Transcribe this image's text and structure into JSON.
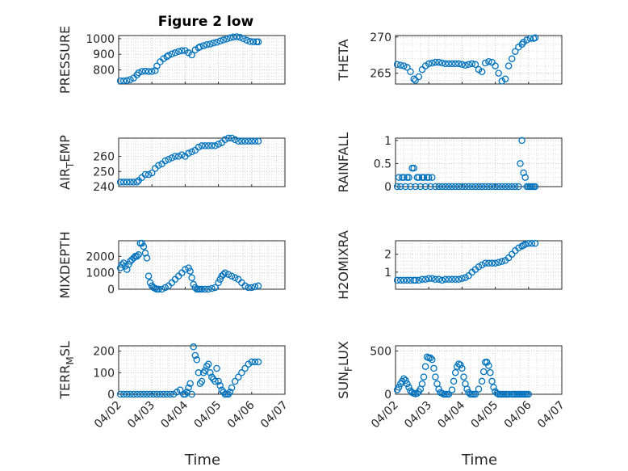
{
  "figure": {
    "title": "Figure 2 low",
    "xlabel_time": "Time"
  },
  "colors": {
    "marker": "#0072bd",
    "axis": "#262626",
    "grid": "#c8c8c8"
  },
  "x_tick_labels": [
    "04/02",
    "04/03",
    "04/04",
    "04/05",
    "04/06",
    "04/07"
  ],
  "chart_data": [
    {
      "type": "scatter",
      "id": "pressure",
      "title": "Figure 2 low",
      "ylabel": "PRESSURE",
      "ylabel_sub": "",
      "ylim": [
        710,
        1020
      ],
      "yticks": [
        800,
        900,
        1000
      ],
      "xlim": [
        0,
        5
      ],
      "marker": "circle",
      "grid": true,
      "x": [
        0.05,
        0.15,
        0.25,
        0.35,
        0.45,
        0.55,
        0.6,
        0.7,
        0.8,
        0.9,
        1.0,
        1.1,
        1.15,
        1.25,
        1.35,
        1.45,
        1.5,
        1.6,
        1.7,
        1.8,
        1.9,
        2.0,
        2.1,
        2.2,
        2.3,
        2.4,
        2.45,
        2.55,
        2.65,
        2.75,
        2.85,
        2.95,
        3.05,
        3.15,
        3.25,
        3.35,
        3.45,
        3.55,
        3.65,
        3.75,
        3.85,
        3.95,
        4.05,
        4.15,
        4.2
      ],
      "y": [
        730,
        730,
        732,
        738,
        748,
        768,
        782,
        790,
        792,
        790,
        790,
        796,
        825,
        852,
        872,
        885,
        893,
        902,
        910,
        918,
        923,
        924,
        910,
        896,
        928,
        942,
        948,
        955,
        962,
        965,
        972,
        977,
        985,
        992,
        998,
        1005,
        1010,
        1012,
        1008,
        1000,
        990,
        982,
        980,
        980,
        980
      ]
    },
    {
      "type": "scatter",
      "id": "theta",
      "ylabel": "THETA",
      "ylabel_sub": "",
      "ylim": [
        263.5,
        270.2
      ],
      "yticks": [
        265,
        270
      ],
      "xlim": [
        0,
        5
      ],
      "marker": "circle",
      "grid": true,
      "x": [
        0.05,
        0.15,
        0.25,
        0.35,
        0.45,
        0.55,
        0.6,
        0.7,
        0.8,
        0.9,
        1.0,
        1.1,
        1.2,
        1.3,
        1.4,
        1.5,
        1.6,
        1.7,
        1.8,
        1.9,
        2.0,
        2.1,
        2.2,
        2.3,
        2.4,
        2.5,
        2.6,
        2.7,
        2.8,
        2.9,
        3.0,
        3.1,
        3.2,
        3.3,
        3.4,
        3.5,
        3.6,
        3.7,
        3.8,
        3.85,
        3.95,
        4.05,
        4.15,
        4.2
      ],
      "y": [
        266.2,
        266.1,
        266.0,
        265.8,
        265.2,
        264.2,
        264.0,
        264.5,
        265.5,
        266.0,
        266.3,
        266.4,
        266.5,
        266.5,
        266.4,
        266.3,
        266.3,
        266.3,
        266.3,
        266.3,
        266.2,
        266.1,
        266.2,
        266.3,
        266.2,
        265.5,
        265.2,
        266.4,
        266.6,
        266.5,
        266.0,
        265.0,
        263.9,
        264.2,
        266.0,
        267.0,
        268.0,
        268.6,
        269.0,
        269.3,
        269.6,
        269.8,
        269.8,
        269.9
      ]
    },
    {
      "type": "scatter",
      "id": "air_temp",
      "ylabel": "AIR",
      "ylabel_sub": "T",
      "ylabel_tail": "EMP",
      "ylim": [
        240,
        272
      ],
      "yticks": [
        240,
        250,
        260
      ],
      "xlim": [
        0,
        5
      ],
      "marker": "circle",
      "grid": true,
      "x": [
        0.05,
        0.15,
        0.25,
        0.35,
        0.45,
        0.55,
        0.6,
        0.7,
        0.8,
        0.9,
        1.0,
        1.1,
        1.2,
        1.3,
        1.4,
        1.5,
        1.6,
        1.7,
        1.8,
        1.9,
        2.0,
        2.1,
        2.2,
        2.3,
        2.4,
        2.5,
        2.6,
        2.7,
        2.8,
        2.9,
        3.0,
        3.1,
        3.2,
        3.3,
        3.4,
        3.5,
        3.6,
        3.7,
        3.8,
        3.9,
        4.0,
        4.1,
        4.2
      ],
      "y": [
        243,
        243,
        243,
        243,
        243,
        243,
        244,
        246,
        248,
        248,
        249,
        252,
        254,
        255,
        257,
        258,
        259,
        260,
        260,
        261,
        260,
        262,
        263,
        264,
        266,
        267,
        267,
        267,
        267,
        267,
        268,
        269,
        271,
        272,
        272,
        271,
        270,
        270,
        270,
        270,
        270,
        270,
        270
      ]
    },
    {
      "type": "scatter",
      "id": "rainfall",
      "ylabel": "RAINFALL",
      "ylabel_sub": "",
      "ylim": [
        0,
        1.05
      ],
      "yticks": [
        0,
        0.5,
        1
      ],
      "xlim": [
        0,
        5
      ],
      "marker": "circle",
      "grid": true,
      "x": [
        0.05,
        0.1,
        0.15,
        0.2,
        0.25,
        0.3,
        0.35,
        0.4,
        0.45,
        0.5,
        0.55,
        0.6,
        0.65,
        0.7,
        0.75,
        0.8,
        0.85,
        0.9,
        0.95,
        1.0,
        1.05,
        1.1,
        1.2,
        1.3,
        1.4,
        1.5,
        1.6,
        1.7,
        1.8,
        1.9,
        2.0,
        2.1,
        2.2,
        2.3,
        2.4,
        2.5,
        2.6,
        2.7,
        2.8,
        2.9,
        3.0,
        3.1,
        3.2,
        3.3,
        3.4,
        3.5,
        3.6,
        3.7,
        3.75,
        3.8,
        3.85,
        3.9,
        3.95,
        4.0,
        4.05,
        4.1,
        4.15,
        4.2
      ],
      "y": [
        0,
        0.2,
        0,
        0.2,
        0.2,
        0,
        0.2,
        0.2,
        0,
        0.4,
        0.4,
        0,
        0.2,
        0.2,
        0,
        0.2,
        0.2,
        0,
        0.2,
        0.2,
        0,
        0.2,
        0,
        0,
        0,
        0,
        0,
        0,
        0,
        0,
        0,
        0,
        0,
        0,
        0,
        0,
        0,
        0,
        0,
        0,
        0,
        0,
        0,
        0,
        0,
        0,
        0,
        0,
        0.5,
        1.0,
        0.3,
        0.2,
        0,
        0,
        0,
        0,
        0,
        0
      ]
    },
    {
      "type": "scatter",
      "id": "mixdepth",
      "ylabel": "MIXDEPTH",
      "ylabel_sub": "",
      "ylim": [
        0,
        2950
      ],
      "yticks": [
        0,
        1000,
        2000
      ],
      "xlim": [
        0,
        5
      ],
      "marker": "circle",
      "grid": true,
      "x": [
        0.05,
        0.1,
        0.15,
        0.2,
        0.25,
        0.3,
        0.35,
        0.4,
        0.45,
        0.5,
        0.55,
        0.6,
        0.65,
        0.7,
        0.75,
        0.8,
        0.85,
        0.9,
        0.95,
        1.0,
        1.05,
        1.1,
        1.15,
        1.2,
        1.3,
        1.4,
        1.5,
        1.6,
        1.7,
        1.8,
        1.9,
        2.0,
        2.1,
        2.15,
        2.2,
        2.25,
        2.3,
        2.35,
        2.4,
        2.45,
        2.5,
        2.6,
        2.7,
        2.8,
        2.9,
        3.0,
        3.05,
        3.1,
        3.15,
        3.2,
        3.3,
        3.4,
        3.5,
        3.6,
        3.7,
        3.8,
        3.9,
        4.0,
        4.1,
        4.2
      ],
      "y": [
        1300,
        1500,
        1600,
        1400,
        1200,
        1500,
        1700,
        1800,
        1900,
        2000,
        2000,
        2100,
        2800,
        2800,
        2600,
        2200,
        1900,
        800,
        400,
        200,
        100,
        50,
        0,
        0,
        0,
        100,
        200,
        400,
        600,
        800,
        1000,
        1200,
        1300,
        1100,
        700,
        300,
        100,
        0,
        0,
        0,
        0,
        0,
        0,
        50,
        100,
        400,
        600,
        800,
        900,
        1000,
        900,
        800,
        700,
        600,
        400,
        200,
        100,
        100,
        150,
        200
      ]
    },
    {
      "type": "scatter",
      "id": "h2omixra",
      "ylabel": "H2OMIXRA",
      "ylabel_sub": "",
      "ylim": [
        0.05,
        2.75
      ],
      "yticks": [
        1,
        2
      ],
      "xlim": [
        0,
        5
      ],
      "marker": "circle",
      "grid": true,
      "x": [
        0.05,
        0.15,
        0.25,
        0.35,
        0.45,
        0.55,
        0.6,
        0.7,
        0.8,
        0.9,
        1.0,
        1.1,
        1.2,
        1.3,
        1.4,
        1.5,
        1.6,
        1.7,
        1.8,
        1.9,
        2.0,
        2.1,
        2.2,
        2.3,
        2.4,
        2.5,
        2.6,
        2.7,
        2.8,
        2.9,
        3.0,
        3.1,
        3.2,
        3.3,
        3.4,
        3.5,
        3.6,
        3.7,
        3.8,
        3.85,
        3.9,
        4.0,
        4.1,
        4.2
      ],
      "y": [
        0.55,
        0.55,
        0.55,
        0.55,
        0.55,
        0.55,
        0.55,
        0.55,
        0.6,
        0.6,
        0.65,
        0.65,
        0.6,
        0.6,
        0.55,
        0.6,
        0.6,
        0.6,
        0.6,
        0.6,
        0.65,
        0.7,
        0.8,
        1.0,
        1.15,
        1.3,
        1.4,
        1.5,
        1.5,
        1.5,
        1.5,
        1.55,
        1.6,
        1.65,
        1.8,
        2.0,
        2.2,
        2.35,
        2.45,
        2.5,
        2.55,
        2.6,
        2.6,
        2.6
      ]
    },
    {
      "type": "scatter",
      "id": "terr_msl",
      "ylabel": "TERR",
      "ylabel_sub": "M",
      "ylabel_tail": "SL",
      "ylim": [
        0,
        225
      ],
      "yticks": [
        0,
        100,
        200
      ],
      "xlim": [
        0,
        5
      ],
      "marker": "circle",
      "grid": true,
      "x": [
        0.05,
        0.15,
        0.25,
        0.35,
        0.45,
        0.55,
        0.65,
        0.75,
        0.85,
        0.95,
        1.05,
        1.15,
        1.25,
        1.35,
        1.45,
        1.55,
        1.65,
        1.75,
        1.85,
        1.95,
        2.0,
        2.05,
        2.1,
        2.15,
        2.2,
        2.25,
        2.3,
        2.35,
        2.4,
        2.45,
        2.5,
        2.55,
        2.6,
        2.65,
        2.7,
        2.75,
        2.8,
        2.85,
        2.9,
        2.95,
        3.0,
        3.05,
        3.1,
        3.15,
        3.2,
        3.25,
        3.3,
        3.35,
        3.4,
        3.5,
        3.6,
        3.7,
        3.8,
        3.9,
        4.0,
        4.1,
        4.2
      ],
      "y": [
        0,
        0,
        0,
        0,
        0,
        0,
        0,
        0,
        0,
        0,
        0,
        0,
        0,
        0,
        0,
        0,
        0,
        10,
        20,
        0,
        0,
        10,
        30,
        50,
        0,
        220,
        180,
        160,
        100,
        50,
        60,
        100,
        110,
        130,
        140,
        100,
        80,
        70,
        60,
        120,
        60,
        40,
        20,
        10,
        0,
        0,
        0,
        10,
        30,
        60,
        80,
        100,
        120,
        140,
        150,
        150,
        150
      ]
    },
    {
      "type": "scatter",
      "id": "sun_flux",
      "ylabel": "SUN",
      "ylabel_sub": "F",
      "ylabel_tail": "LUX",
      "ylim": [
        0,
        560
      ],
      "yticks": [
        0,
        500
      ],
      "xlim": [
        0,
        5
      ],
      "marker": "circle",
      "grid": true,
      "x": [
        0.05,
        0.1,
        0.15,
        0.2,
        0.25,
        0.3,
        0.35,
        0.4,
        0.45,
        0.5,
        0.55,
        0.6,
        0.65,
        0.7,
        0.75,
        0.8,
        0.85,
        0.9,
        0.95,
        1.0,
        1.05,
        1.1,
        1.15,
        1.2,
        1.25,
        1.3,
        1.35,
        1.4,
        1.45,
        1.5,
        1.55,
        1.6,
        1.7,
        1.75,
        1.8,
        1.85,
        1.9,
        1.95,
        2.0,
        2.05,
        2.1,
        2.15,
        2.2,
        2.25,
        2.3,
        2.35,
        2.4,
        2.5,
        2.6,
        2.65,
        2.7,
        2.75,
        2.8,
        2.85,
        2.9,
        2.95,
        3.0,
        3.05,
        3.1,
        3.15,
        3.2,
        3.25,
        3.3,
        3.35,
        3.4,
        3.5,
        3.55,
        3.6,
        3.65,
        3.7,
        3.75,
        3.8,
        3.85,
        3.9,
        3.95,
        4.0
      ],
      "y": [
        50,
        80,
        120,
        150,
        180,
        160,
        120,
        80,
        40,
        20,
        10,
        5,
        10,
        30,
        60,
        120,
        200,
        320,
        430,
        420,
        420,
        400,
        300,
        200,
        120,
        60,
        20,
        10,
        0,
        0,
        0,
        0,
        50,
        150,
        250,
        320,
        350,
        340,
        300,
        200,
        120,
        60,
        20,
        0,
        0,
        0,
        0,
        60,
        150,
        260,
        370,
        370,
        330,
        250,
        150,
        80,
        30,
        10,
        0,
        0,
        0,
        0,
        0,
        0,
        0,
        0,
        0,
        0,
        0,
        0,
        0,
        0,
        0,
        0,
        0,
        0
      ]
    }
  ]
}
